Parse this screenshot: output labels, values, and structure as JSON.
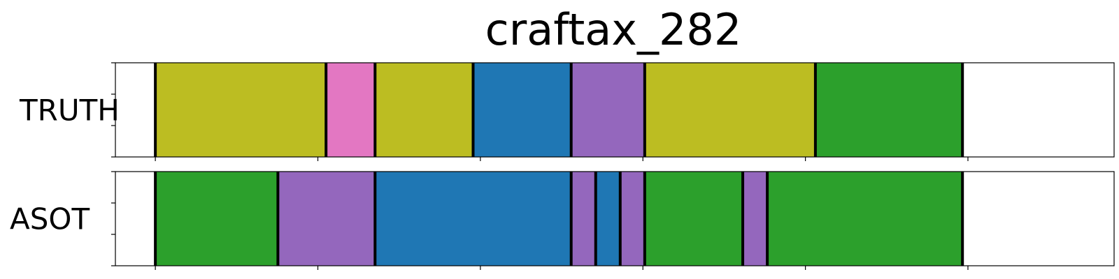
{
  "chart_data": {
    "type": "segmentation",
    "title": "craftax_282",
    "xlim": [
      0,
      1100
    ],
    "colors": {
      "olive": "#bcbd22",
      "pink": "#e377c2",
      "blue": "#1f77b4",
      "purple": "#9467bd",
      "green": "#2ca02c",
      "boundary": "#000000"
    },
    "rows": [
      {
        "label": "TRUTH",
        "segments": [
          {
            "start": 0,
            "end": 44,
            "color": "#ffffff"
          },
          {
            "start": 44,
            "end": 232,
            "color": "#bcbd22"
          },
          {
            "start": 232,
            "end": 286,
            "color": "#e377c2"
          },
          {
            "start": 286,
            "end": 394,
            "color": "#bcbd22"
          },
          {
            "start": 394,
            "end": 502,
            "color": "#1f77b4"
          },
          {
            "start": 502,
            "end": 583,
            "color": "#9467bd"
          },
          {
            "start": 583,
            "end": 771,
            "color": "#bcbd22"
          },
          {
            "start": 771,
            "end": 933,
            "color": "#2ca02c"
          },
          {
            "start": 933,
            "end": 1100,
            "color": "#ffffff"
          }
        ]
      },
      {
        "label": "ASOT",
        "segments": [
          {
            "start": 0,
            "end": 44,
            "color": "#ffffff"
          },
          {
            "start": 44,
            "end": 179,
            "color": "#2ca02c"
          },
          {
            "start": 179,
            "end": 286,
            "color": "#9467bd"
          },
          {
            "start": 286,
            "end": 502,
            "color": "#1f77b4"
          },
          {
            "start": 502,
            "end": 529,
            "color": "#9467bd"
          },
          {
            "start": 529,
            "end": 556,
            "color": "#1f77b4"
          },
          {
            "start": 556,
            "end": 583,
            "color": "#9467bd"
          },
          {
            "start": 583,
            "end": 691,
            "color": "#2ca02c"
          },
          {
            "start": 691,
            "end": 718,
            "color": "#9467bd"
          },
          {
            "start": 718,
            "end": 933,
            "color": "#2ca02c"
          },
          {
            "start": 933,
            "end": 1100,
            "color": "#ffffff"
          }
        ]
      }
    ],
    "x_ticks": [
      44,
      223,
      402,
      581,
      760,
      939
    ],
    "y_ticks_per_row": 4
  }
}
